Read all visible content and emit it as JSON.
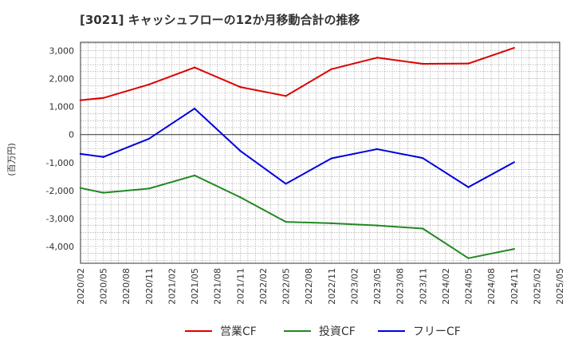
{
  "chart_data": {
    "type": "line",
    "title": "[3021]  キャッシュフローの12か月移動合計の推移",
    "ylabel": "(百万円)",
    "xlabel": "",
    "ylim": [
      -4600,
      3300
    ],
    "yticks": [
      3000,
      2000,
      1000,
      0,
      -1000,
      -2000,
      -3000,
      -4000
    ],
    "ytick_labels": [
      "3,000",
      "2,000",
      "1,000",
      "0",
      "-1,000",
      "-2,000",
      "-3,000",
      "-4,000"
    ],
    "x_labels": [
      "2020/02",
      "2020/05",
      "2020/08",
      "2020/11",
      "2021/02",
      "2021/05",
      "2021/08",
      "2021/11",
      "2022/02",
      "2022/05",
      "2022/08",
      "2022/11",
      "2023/02",
      "2023/05",
      "2023/08",
      "2023/11",
      "2024/02",
      "2024/05",
      "2024/08",
      "2024/11",
      "2025/02",
      "2025/05"
    ],
    "grid": true,
    "legend_position": "bottom-center",
    "series": [
      {
        "name": "営業CF",
        "color": "#dd0000",
        "points": [
          {
            "x": "2020/02",
            "y": 1230
          },
          {
            "x": "2020/05",
            "y": 1310
          },
          {
            "x": "2020/11",
            "y": 1790
          },
          {
            "x": "2021/05",
            "y": 2400
          },
          {
            "x": "2021/11",
            "y": 1700
          },
          {
            "x": "2022/05",
            "y": 1380
          },
          {
            "x": "2022/11",
            "y": 2340
          },
          {
            "x": "2023/05",
            "y": 2750
          },
          {
            "x": "2023/11",
            "y": 2530
          },
          {
            "x": "2024/05",
            "y": 2540
          },
          {
            "x": "2024/11",
            "y": 3100
          }
        ]
      },
      {
        "name": "投資CF",
        "color": "#228822",
        "points": [
          {
            "x": "2020/02",
            "y": -1910
          },
          {
            "x": "2020/05",
            "y": -2080
          },
          {
            "x": "2020/11",
            "y": -1930
          },
          {
            "x": "2021/05",
            "y": -1460
          },
          {
            "x": "2021/11",
            "y": -2240
          },
          {
            "x": "2022/05",
            "y": -3120
          },
          {
            "x": "2022/11",
            "y": -3170
          },
          {
            "x": "2023/05",
            "y": -3250
          },
          {
            "x": "2023/11",
            "y": -3360
          },
          {
            "x": "2024/05",
            "y": -4420
          },
          {
            "x": "2024/11",
            "y": -4090
          }
        ]
      },
      {
        "name": "フリーCF",
        "color": "#0000dd",
        "points": [
          {
            "x": "2020/02",
            "y": -690
          },
          {
            "x": "2020/05",
            "y": -800
          },
          {
            "x": "2020/11",
            "y": -150
          },
          {
            "x": "2021/05",
            "y": 930
          },
          {
            "x": "2021/11",
            "y": -580
          },
          {
            "x": "2022/05",
            "y": -1760
          },
          {
            "x": "2022/11",
            "y": -850
          },
          {
            "x": "2023/05",
            "y": -520
          },
          {
            "x": "2023/11",
            "y": -840
          },
          {
            "x": "2024/05",
            "y": -1880
          },
          {
            "x": "2024/11",
            "y": -990
          }
        ]
      }
    ]
  }
}
